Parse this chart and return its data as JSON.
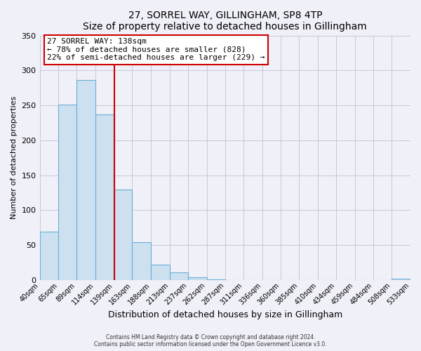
{
  "title": "27, SORREL WAY, GILLINGHAM, SP8 4TP",
  "subtitle": "Size of property relative to detached houses in Gillingham",
  "xlabel": "Distribution of detached houses by size in Gillingham",
  "ylabel": "Number of detached properties",
  "bin_edges": [
    40,
    65,
    89,
    114,
    139,
    163,
    188,
    213,
    237,
    262,
    287,
    311,
    336,
    360,
    385,
    410,
    434,
    459,
    484,
    508,
    533
  ],
  "bar_heights": [
    69,
    251,
    286,
    237,
    129,
    54,
    22,
    11,
    4,
    1,
    0,
    0,
    0,
    0,
    0,
    0,
    0,
    0,
    0,
    2
  ],
  "bar_color": "#cce0f0",
  "bar_edge_color": "#6baed6",
  "property_line_x": 139,
  "property_line_color": "#cc0000",
  "annotation_title": "27 SORREL WAY: 138sqm",
  "annotation_line1": "← 78% of detached houses are smaller (828)",
  "annotation_line2": "22% of semi-detached houses are larger (229) →",
  "annotation_box_color": "#ffffff",
  "annotation_box_edge_color": "#cc0000",
  "ylim": [
    0,
    350
  ],
  "yticks": [
    0,
    50,
    100,
    150,
    200,
    250,
    300,
    350
  ],
  "tick_labels": [
    "40sqm",
    "65sqm",
    "89sqm",
    "114sqm",
    "139sqm",
    "163sqm",
    "188sqm",
    "213sqm",
    "237sqm",
    "262sqm",
    "287sqm",
    "311sqm",
    "336sqm",
    "360sqm",
    "385sqm",
    "410sqm",
    "434sqm",
    "459sqm",
    "484sqm",
    "508sqm",
    "533sqm"
  ],
  "footer_line1": "Contains HM Land Registry data © Crown copyright and database right 2024.",
  "footer_line2": "Contains public sector information licensed under the Open Government Licence v3.0.",
  "background_color": "#f0f0f8",
  "grid_color": "#c8c8d8"
}
